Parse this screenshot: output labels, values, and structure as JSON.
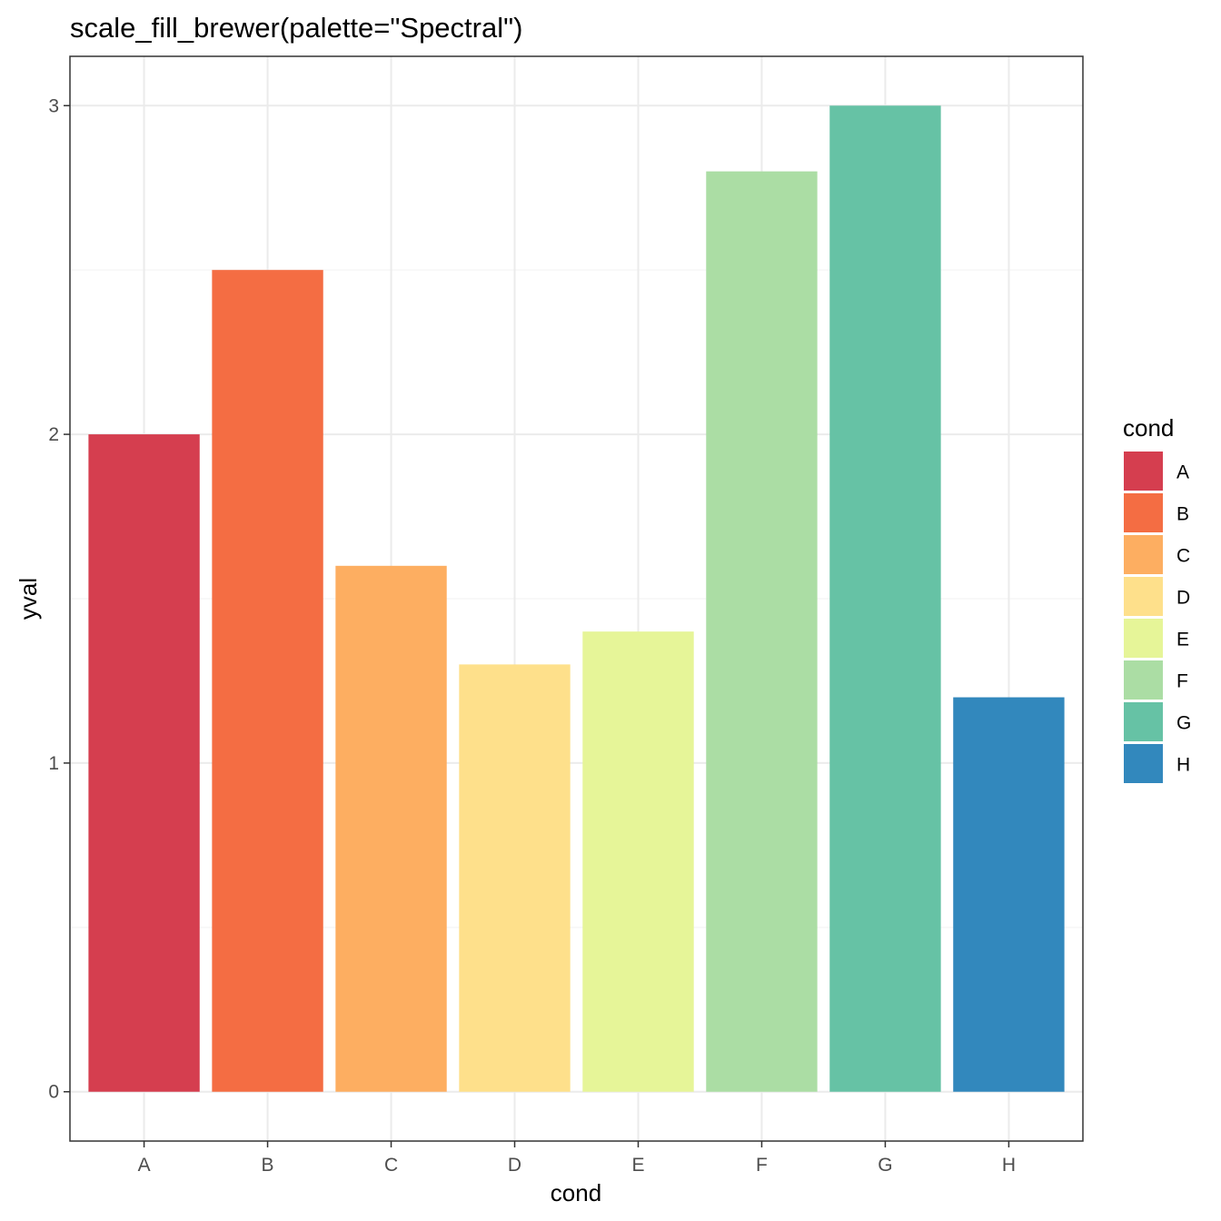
{
  "chart_data": {
    "type": "bar",
    "title": "scale_fill_brewer(palette=\"Spectral\")",
    "xlabel": "cond",
    "ylabel": "yval",
    "categories": [
      "A",
      "B",
      "C",
      "D",
      "E",
      "F",
      "G",
      "H"
    ],
    "values": [
      2.0,
      2.5,
      1.6,
      1.3,
      1.4,
      2.8,
      3.0,
      1.2
    ],
    "colors": [
      "#D53E4F",
      "#F46D43",
      "#FDAE61",
      "#FEE08B",
      "#E6F598",
      "#ABDDA4",
      "#66C2A5",
      "#3288BD"
    ],
    "ylim": [
      -0.15,
      3.15
    ],
    "yticks": [
      0,
      1,
      2,
      3
    ],
    "ytick_labels": [
      "0",
      "1",
      "2",
      "3"
    ],
    "grid": true,
    "legend": {
      "title": "cond",
      "placement": "right",
      "entries": [
        "A",
        "B",
        "C",
        "D",
        "E",
        "F",
        "G",
        "H"
      ]
    }
  }
}
